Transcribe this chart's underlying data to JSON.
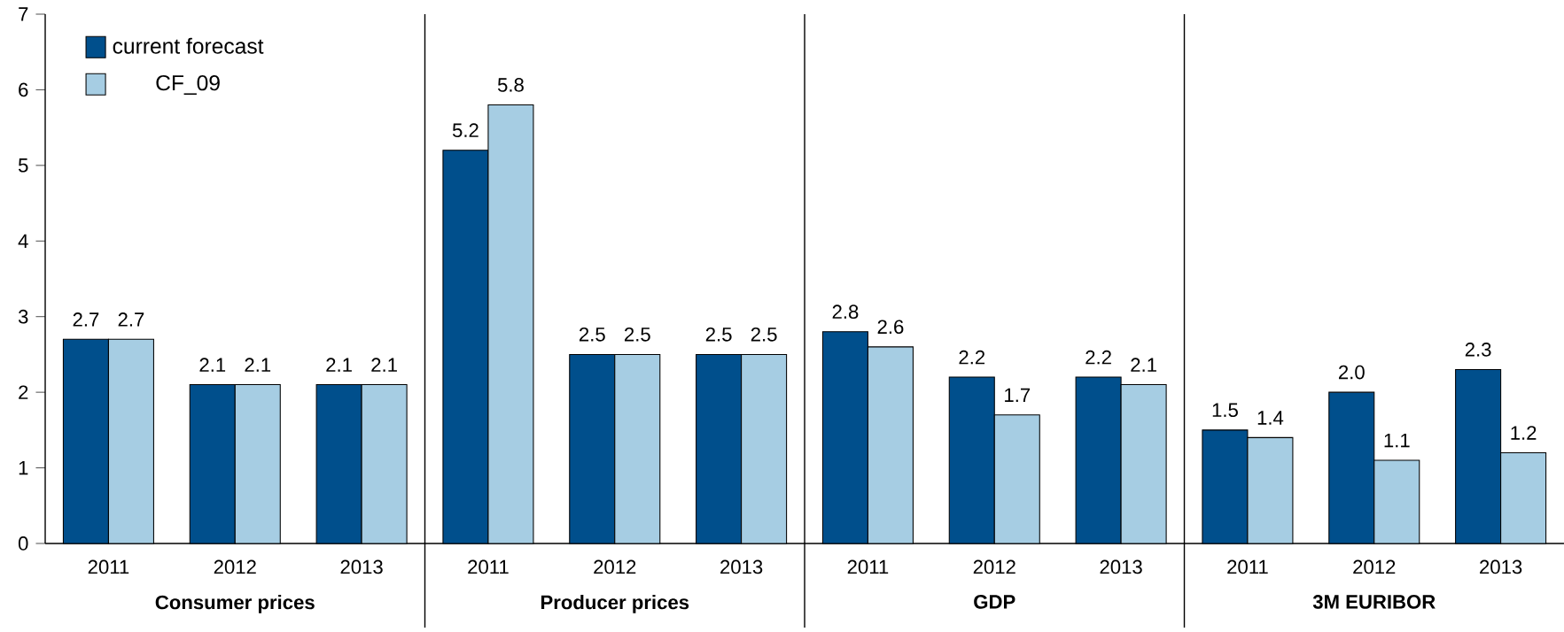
{
  "chart_data": {
    "type": "bar",
    "categories": [
      "2011",
      "2012",
      "2013",
      "2011",
      "2012",
      "2013",
      "2011",
      "2012",
      "2013",
      "2011",
      "2012",
      "2013"
    ],
    "series": [
      {
        "name": "current forecast",
        "color": "#004f8c",
        "values": [
          2.7,
          2.1,
          2.1,
          5.2,
          2.5,
          2.5,
          2.8,
          2.2,
          2.2,
          1.5,
          2.0,
          2.3
        ],
        "value_labels": [
          "2.7",
          "2.1",
          "2.1",
          "5.2",
          "2.5",
          "2.5",
          "2.8",
          "2.2",
          "2.2",
          "1.5",
          "2.0",
          "2.3"
        ]
      },
      {
        "name": "CF_09",
        "color": "#a6cde3",
        "values": [
          2.7,
          2.1,
          2.1,
          5.8,
          2.5,
          2.5,
          2.6,
          1.7,
          2.1,
          1.4,
          1.1,
          1.2
        ],
        "value_labels": [
          "2.7",
          "2.1",
          "2.1",
          "5.8",
          "2.5",
          "2.5",
          "2.6",
          "1.7",
          "2.1",
          "1.4",
          "1.1",
          "1.2"
        ]
      }
    ],
    "annotations": [
      "Consumer prices",
      "Producer prices",
      "GDP",
      "3M EURIBOR"
    ],
    "ylim": [
      0,
      7
    ],
    "yticks": [
      0,
      1,
      2,
      3,
      4,
      5,
      6,
      7
    ],
    "grid": false,
    "legend": "top left"
  }
}
